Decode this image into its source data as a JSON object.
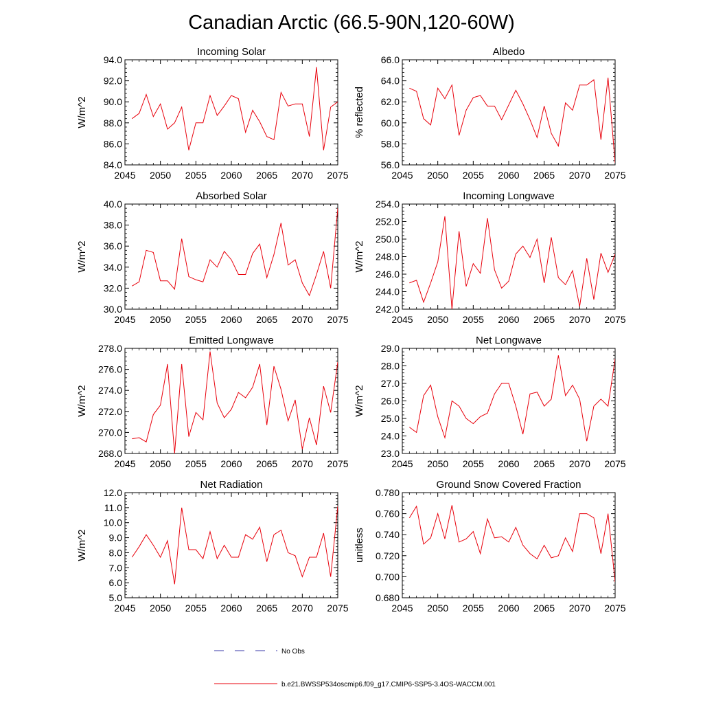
{
  "page_title": "Canadian Arctic (66.5-90N,120-60W)",
  "legend": {
    "obs_label": "No Obs",
    "obs_color": "#3a3aa8",
    "model_label": "b.e21.BWSSP534oscmip6.f09_g17.CMIP6-SSP5-3.4OS-WACCM.001",
    "model_color": "#e8000b"
  },
  "chart_data": [
    {
      "type": "line",
      "title": "Incoming Solar",
      "ylabel": "W/m^2",
      "xlim": [
        2045,
        2075
      ],
      "ylim": [
        84.0,
        94.0
      ],
      "xticks": [
        2045,
        2050,
        2055,
        2060,
        2065,
        2070,
        2075
      ],
      "yticks": [
        84.0,
        86.0,
        88.0,
        90.0,
        92.0,
        94.0
      ],
      "decimals": 1,
      "x": [
        2046,
        2047,
        2048,
        2049,
        2050,
        2051,
        2052,
        2053,
        2054,
        2055,
        2056,
        2057,
        2058,
        2059,
        2060,
        2061,
        2062,
        2063,
        2064,
        2065,
        2066,
        2067,
        2068,
        2069,
        2070,
        2071,
        2072,
        2073,
        2074,
        2075
      ],
      "values": [
        88.4,
        88.9,
        90.7,
        88.6,
        89.8,
        87.4,
        88.0,
        89.5,
        85.4,
        88.0,
        88.0,
        90.6,
        88.7,
        89.6,
        90.6,
        90.3,
        87.1,
        89.2,
        88.1,
        86.7,
        86.4,
        90.9,
        89.6,
        89.8,
        89.8,
        86.7,
        93.3,
        85.4,
        89.5,
        90.0
      ]
    },
    {
      "type": "line",
      "title": "Albedo",
      "ylabel": "% reflected",
      "xlim": [
        2045,
        2075
      ],
      "ylim": [
        56.0,
        66.0
      ],
      "xticks": [
        2045,
        2050,
        2055,
        2060,
        2065,
        2070,
        2075
      ],
      "yticks": [
        56.0,
        58.0,
        60.0,
        62.0,
        64.0,
        66.0
      ],
      "decimals": 1,
      "x": [
        2046,
        2047,
        2048,
        2049,
        2050,
        2051,
        2052,
        2053,
        2054,
        2055,
        2056,
        2057,
        2058,
        2059,
        2060,
        2061,
        2062,
        2063,
        2064,
        2065,
        2066,
        2067,
        2068,
        2069,
        2070,
        2071,
        2072,
        2073,
        2074,
        2075
      ],
      "values": [
        63.3,
        63.0,
        60.4,
        59.8,
        63.3,
        62.3,
        63.6,
        58.8,
        61.2,
        62.4,
        62.6,
        61.6,
        61.6,
        60.3,
        61.7,
        63.1,
        61.8,
        60.3,
        58.6,
        61.6,
        59.0,
        57.8,
        61.9,
        61.2,
        63.6,
        63.6,
        64.1,
        58.4,
        64.3,
        56.2
      ]
    },
    {
      "type": "line",
      "title": "Absorbed Solar",
      "ylabel": "W/m^2",
      "xlim": [
        2045,
        2075
      ],
      "ylim": [
        30.0,
        40.0
      ],
      "xticks": [
        2045,
        2050,
        2055,
        2060,
        2065,
        2070,
        2075
      ],
      "yticks": [
        30.0,
        32.0,
        34.0,
        36.0,
        38.0,
        40.0
      ],
      "decimals": 1,
      "x": [
        2046,
        2047,
        2048,
        2049,
        2050,
        2051,
        2052,
        2053,
        2054,
        2055,
        2056,
        2057,
        2058,
        2059,
        2060,
        2061,
        2062,
        2063,
        2064,
        2065,
        2066,
        2067,
        2068,
        2069,
        2070,
        2071,
        2072,
        2073,
        2074,
        2075
      ],
      "values": [
        32.2,
        32.6,
        35.6,
        35.4,
        32.7,
        32.7,
        31.9,
        36.7,
        33.1,
        32.8,
        32.6,
        34.7,
        34.0,
        35.5,
        34.7,
        33.3,
        33.3,
        35.3,
        36.2,
        33.0,
        35.2,
        38.2,
        34.2,
        34.7,
        32.5,
        31.3,
        33.3,
        35.5,
        32.0,
        39.6
      ]
    },
    {
      "type": "line",
      "title": "Incoming Longwave",
      "ylabel": "W/m^2",
      "xlim": [
        2045,
        2075
      ],
      "ylim": [
        242.0,
        254.0
      ],
      "xticks": [
        2045,
        2050,
        2055,
        2060,
        2065,
        2070,
        2075
      ],
      "yticks": [
        242.0,
        244.0,
        246.0,
        248.0,
        250.0,
        252.0,
        254.0
      ],
      "decimals": 1,
      "x": [
        2046,
        2047,
        2048,
        2049,
        2050,
        2051,
        2052,
        2053,
        2054,
        2055,
        2056,
        2057,
        2058,
        2059,
        2060,
        2061,
        2062,
        2063,
        2064,
        2065,
        2066,
        2067,
        2068,
        2069,
        2070,
        2071,
        2072,
        2073,
        2074,
        2075
      ],
      "values": [
        245.0,
        245.3,
        242.8,
        245.0,
        247.4,
        252.6,
        242.0,
        250.9,
        244.6,
        247.2,
        246.1,
        252.4,
        246.5,
        244.4,
        245.2,
        248.3,
        249.2,
        247.9,
        250.0,
        245.0,
        250.2,
        245.6,
        244.8,
        246.4,
        242.3,
        247.8,
        243.1,
        248.4,
        246.2,
        248.3
      ]
    },
    {
      "type": "line",
      "title": "Emitted Longwave",
      "ylabel": "W/m^2",
      "xlim": [
        2045,
        2075
      ],
      "ylim": [
        268.0,
        278.0
      ],
      "xticks": [
        2045,
        2050,
        2055,
        2060,
        2065,
        2070,
        2075
      ],
      "yticks": [
        268.0,
        270.0,
        272.0,
        274.0,
        276.0,
        278.0
      ],
      "decimals": 1,
      "x": [
        2046,
        2047,
        2048,
        2049,
        2050,
        2051,
        2052,
        2053,
        2054,
        2055,
        2056,
        2057,
        2058,
        2059,
        2060,
        2061,
        2062,
        2063,
        2064,
        2065,
        2066,
        2067,
        2068,
        2069,
        2070,
        2071,
        2072,
        2073,
        2074,
        2075
      ],
      "values": [
        269.4,
        269.5,
        269.1,
        271.7,
        272.6,
        276.5,
        268.0,
        276.5,
        269.6,
        271.9,
        271.2,
        277.7,
        272.8,
        271.4,
        272.2,
        273.8,
        273.3,
        274.3,
        276.5,
        270.7,
        276.3,
        274.1,
        271.1,
        273.1,
        268.4,
        271.4,
        268.8,
        274.4,
        271.9,
        276.7
      ]
    },
    {
      "type": "line",
      "title": "Net Longwave",
      "ylabel": "W/m^2",
      "xlim": [
        2045,
        2075
      ],
      "ylim": [
        23.0,
        29.0
      ],
      "xticks": [
        2045,
        2050,
        2055,
        2060,
        2065,
        2070,
        2075
      ],
      "yticks": [
        23.0,
        24.0,
        25.0,
        26.0,
        27.0,
        28.0,
        29.0
      ],
      "decimals": 1,
      "x": [
        2046,
        2047,
        2048,
        2049,
        2050,
        2051,
        2052,
        2053,
        2054,
        2055,
        2056,
        2057,
        2058,
        2059,
        2060,
        2061,
        2062,
        2063,
        2064,
        2065,
        2066,
        2067,
        2068,
        2069,
        2070,
        2071,
        2072,
        2073,
        2074,
        2075
      ],
      "values": [
        24.5,
        24.2,
        26.3,
        26.9,
        25.1,
        23.9,
        26.0,
        25.7,
        25.0,
        24.7,
        25.1,
        25.3,
        26.4,
        27.0,
        27.0,
        25.7,
        24.1,
        26.4,
        26.5,
        25.7,
        26.1,
        28.6,
        26.3,
        26.9,
        26.1,
        23.7,
        25.7,
        26.1,
        25.7,
        28.4
      ]
    },
    {
      "type": "line",
      "title": "Net Radiation",
      "ylabel": "W/m^2",
      "xlim": [
        2045,
        2075
      ],
      "ylim": [
        5.0,
        12.0
      ],
      "xticks": [
        2045,
        2050,
        2055,
        2060,
        2065,
        2070,
        2075
      ],
      "yticks": [
        5.0,
        6.0,
        7.0,
        8.0,
        9.0,
        10.0,
        11.0,
        12.0
      ],
      "decimals": 1,
      "x": [
        2046,
        2047,
        2048,
        2049,
        2050,
        2051,
        2052,
        2053,
        2054,
        2055,
        2056,
        2057,
        2058,
        2059,
        2060,
        2061,
        2062,
        2063,
        2064,
        2065,
        2066,
        2067,
        2068,
        2069,
        2070,
        2071,
        2072,
        2073,
        2074,
        2075
      ],
      "values": [
        7.7,
        8.4,
        9.2,
        8.5,
        7.7,
        8.8,
        5.9,
        11.0,
        8.2,
        8.2,
        7.6,
        9.4,
        7.6,
        8.5,
        7.7,
        7.7,
        9.2,
        8.9,
        9.7,
        7.4,
        9.2,
        9.5,
        8.0,
        7.8,
        6.4,
        7.7,
        7.7,
        9.3,
        6.4,
        11.1
      ]
    },
    {
      "type": "line",
      "title": "Ground Snow Covered Fraction",
      "ylabel": "unitless",
      "xlim": [
        2045,
        2075
      ],
      "ylim": [
        0.68,
        0.78
      ],
      "xticks": [
        2045,
        2050,
        2055,
        2060,
        2065,
        2070,
        2075
      ],
      "yticks": [
        0.68,
        0.7,
        0.72,
        0.74,
        0.76,
        0.78
      ],
      "decimals": 3,
      "x": [
        2046,
        2047,
        2048,
        2049,
        2050,
        2051,
        2052,
        2053,
        2054,
        2055,
        2056,
        2057,
        2058,
        2059,
        2060,
        2061,
        2062,
        2063,
        2064,
        2065,
        2066,
        2067,
        2068,
        2069,
        2070,
        2071,
        2072,
        2073,
        2074,
        2075
      ],
      "values": [
        0.756,
        0.767,
        0.731,
        0.737,
        0.76,
        0.736,
        0.768,
        0.733,
        0.736,
        0.743,
        0.722,
        0.755,
        0.737,
        0.738,
        0.733,
        0.747,
        0.73,
        0.722,
        0.717,
        0.73,
        0.718,
        0.72,
        0.737,
        0.724,
        0.76,
        0.76,
        0.756,
        0.722,
        0.76,
        0.695
      ]
    }
  ]
}
